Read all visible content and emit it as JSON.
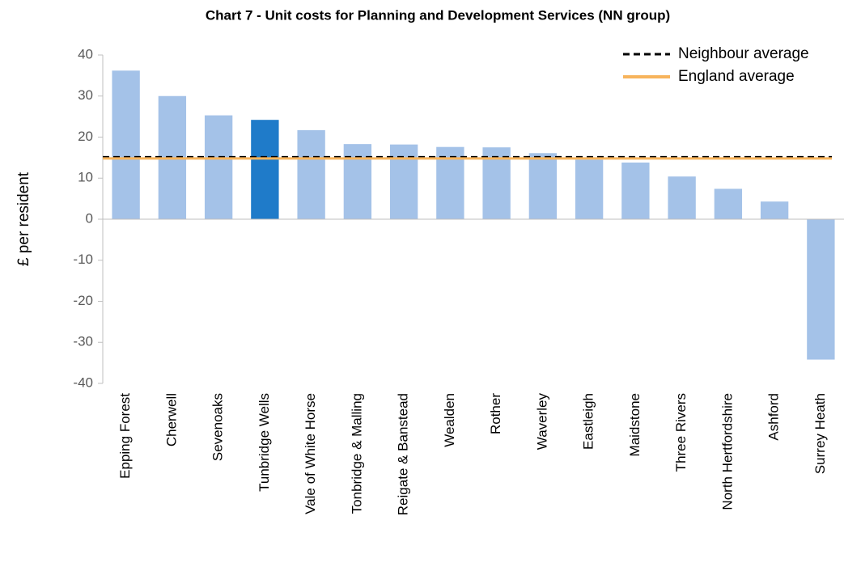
{
  "chart_data": {
    "type": "bar",
    "title": "Chart 7 - Unit costs for Planning and Development Services (NN group)",
    "y_label": "£ per resident",
    "categories": [
      "Epping Forest",
      "Cherwell",
      "Sevenoaks",
      "Tunbridge Wells",
      "Vale of White Horse",
      "Tonbridge & Malling",
      "Reigate & Banstead",
      "Wealden",
      "Rother",
      "Waverley",
      "Eastleigh",
      "Maidstone",
      "Three Rivers",
      "North Hertfordshire",
      "Ashford",
      "Surrey Heath"
    ],
    "values": [
      36.2,
      30.0,
      25.3,
      24.2,
      21.7,
      18.3,
      18.2,
      17.6,
      17.5,
      16.1,
      14.5,
      13.8,
      10.4,
      7.4,
      4.3,
      -34.2
    ],
    "colors": [
      "#a4c2e8",
      "#a4c2e8",
      "#a4c2e8",
      "#1f7bc9",
      "#a4c2e8",
      "#a4c2e8",
      "#a4c2e8",
      "#a4c2e8",
      "#a4c2e8",
      "#a4c2e8",
      "#a4c2e8",
      "#a4c2e8",
      "#a4c2e8",
      "#a4c2e8",
      "#a4c2e8",
      "#a4c2e8"
    ],
    "reference_lines": [
      {
        "name": "Neighbour average",
        "value": 15.2,
        "color": "#000000",
        "style": "dashed"
      },
      {
        "name": "England average",
        "value": 14.8,
        "color": "#f7b45c",
        "style": "solid"
      }
    ],
    "ylim": [
      -40,
      40
    ],
    "yticks": [
      -40,
      -30,
      -20,
      -10,
      0,
      10,
      20,
      30,
      40
    ],
    "grid": false,
    "legend": "top-right"
  }
}
